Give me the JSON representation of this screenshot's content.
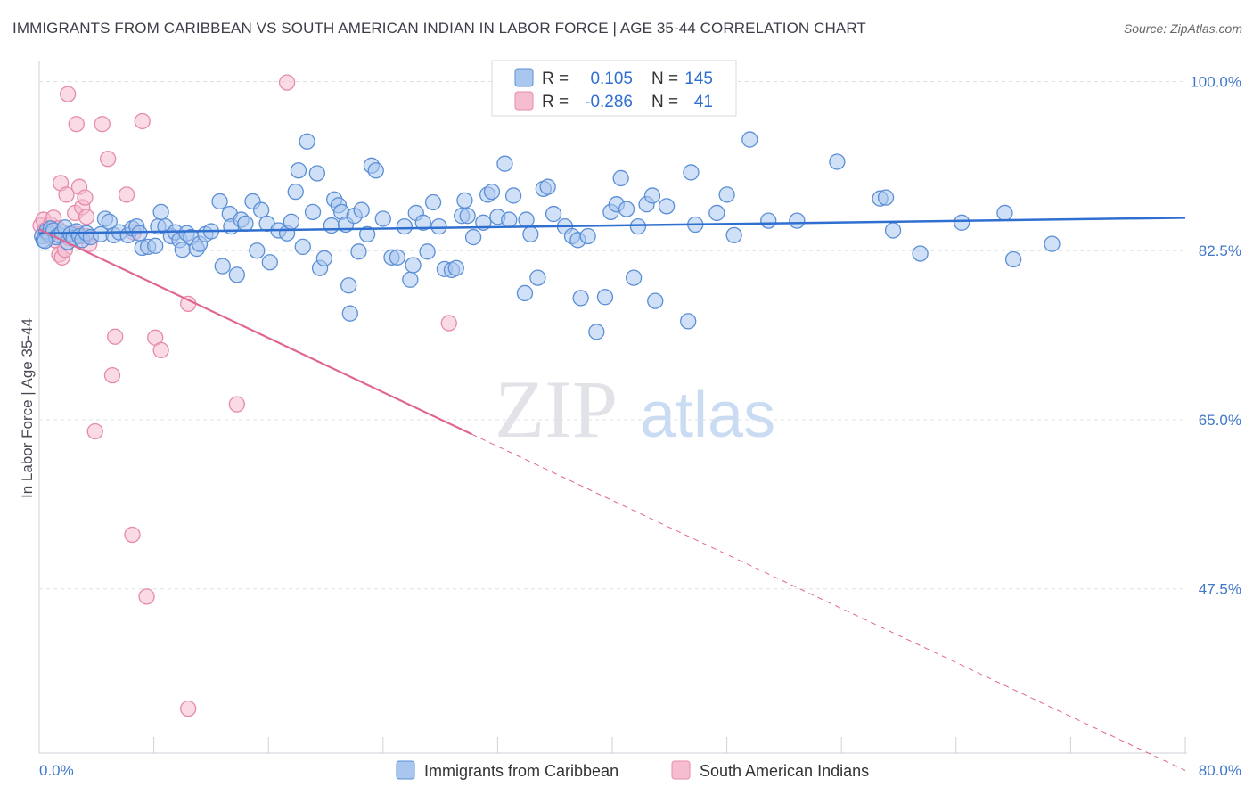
{
  "title": "IMMIGRANTS FROM CARIBBEAN VS SOUTH AMERICAN INDIAN IN LABOR FORCE | AGE 35-44 CORRELATION CHART",
  "source": "Source: ZipAtlas.com",
  "watermark": {
    "zip": "ZIP",
    "atlas": "atlas"
  },
  "colors": {
    "blue_fill": "#a9c6ee",
    "blue_stroke": "#5b8fd6",
    "blue_line": "#2f6fcf",
    "pink_fill": "#f6bcd0",
    "pink_stroke": "#e58aab",
    "pink_line": "#e06690",
    "grid": "#dde0e6",
    "tick_label": "#3f78c9"
  },
  "legend": {
    "rows": [
      {
        "r_label": "R =",
        "r_value": "0.105",
        "n_label": "N =",
        "n_value": "145"
      },
      {
        "r_label": "R =",
        "r_value": "-0.286",
        "n_label": "N =",
        "n_value": "41"
      }
    ]
  },
  "chart_data": {
    "type": "scatter",
    "xlabel": "",
    "ylabel": "In Labor Force | Age 35-44",
    "xlim": [
      0,
      80
    ],
    "ylim": [
      30.5,
      101.8
    ],
    "x_tick_labels": [
      "0.0%",
      "80.0%"
    ],
    "y_ticks": [
      100.0,
      82.5,
      65.0,
      47.5
    ],
    "y_tick_labels": [
      "100.0%",
      "82.5%",
      "65.0%",
      "47.5%"
    ],
    "grid": true,
    "legend_position": "bottom",
    "series": [
      {
        "name": "Immigrants from Caribbean",
        "trend": {
          "x": [
            0,
            80
          ],
          "y": [
            84.3,
            85.9
          ],
          "dashed_from": null
        },
        "points": [
          [
            0.2,
            84.0
          ],
          [
            0.3,
            83.6
          ],
          [
            0.5,
            84.5
          ],
          [
            0.7,
            84.2
          ],
          [
            0.8,
            84.8
          ],
          [
            1.0,
            84.6
          ],
          [
            1.2,
            83.9
          ],
          [
            1.4,
            84.1
          ],
          [
            1.6,
            84.4
          ],
          [
            1.8,
            84.9
          ],
          [
            2.0,
            83.4
          ],
          [
            2.2,
            84.2
          ],
          [
            2.4,
            83.8
          ],
          [
            2.6,
            84.5
          ],
          [
            2.8,
            84.0
          ],
          [
            3.0,
            83.6
          ],
          [
            3.3,
            84.3
          ],
          [
            3.6,
            83.9
          ],
          [
            4.3,
            84.2
          ],
          [
            4.6,
            85.8
          ],
          [
            4.9,
            85.5
          ],
          [
            5.2,
            84.1
          ],
          [
            5.6,
            84.4
          ],
          [
            6.2,
            84.1
          ],
          [
            6.5,
            84.8
          ],
          [
            6.8,
            85.0
          ],
          [
            7.0,
            84.3
          ],
          [
            7.2,
            82.8
          ],
          [
            7.6,
            82.9
          ],
          [
            8.1,
            83.0
          ],
          [
            8.3,
            85.0
          ],
          [
            8.5,
            86.5
          ],
          [
            8.8,
            85.0
          ],
          [
            9.2,
            84.0
          ],
          [
            9.5,
            84.4
          ],
          [
            9.8,
            83.6
          ],
          [
            10.0,
            82.6
          ],
          [
            10.3,
            84.3
          ],
          [
            10.6,
            83.9
          ],
          [
            11.0,
            82.7
          ],
          [
            11.2,
            83.2
          ],
          [
            11.6,
            84.2
          ],
          [
            12.0,
            84.5
          ],
          [
            12.6,
            87.6
          ],
          [
            12.8,
            80.9
          ],
          [
            13.3,
            86.3
          ],
          [
            13.4,
            85.0
          ],
          [
            13.8,
            80.0
          ],
          [
            14.1,
            85.7
          ],
          [
            14.4,
            85.3
          ],
          [
            14.9,
            87.6
          ],
          [
            15.2,
            82.5
          ],
          [
            15.5,
            86.7
          ],
          [
            15.9,
            85.3
          ],
          [
            16.1,
            81.3
          ],
          [
            16.7,
            84.6
          ],
          [
            17.3,
            84.3
          ],
          [
            17.6,
            85.5
          ],
          [
            17.9,
            88.6
          ],
          [
            18.1,
            90.8
          ],
          [
            18.4,
            82.9
          ],
          [
            18.7,
            93.8
          ],
          [
            19.1,
            86.5
          ],
          [
            19.4,
            90.5
          ],
          [
            19.6,
            80.7
          ],
          [
            19.9,
            81.7
          ],
          [
            20.4,
            85.1
          ],
          [
            20.6,
            87.8
          ],
          [
            20.9,
            87.2
          ],
          [
            21.1,
            86.5
          ],
          [
            21.4,
            85.2
          ],
          [
            21.6,
            78.9
          ],
          [
            21.7,
            76.0
          ],
          [
            22.0,
            86.1
          ],
          [
            22.3,
            82.4
          ],
          [
            22.5,
            86.7
          ],
          [
            22.9,
            84.2
          ],
          [
            23.2,
            91.3
          ],
          [
            23.5,
            90.8
          ],
          [
            24.0,
            85.8
          ],
          [
            24.6,
            81.8
          ],
          [
            25.0,
            81.8
          ],
          [
            25.5,
            85.0
          ],
          [
            25.9,
            79.5
          ],
          [
            26.1,
            81.0
          ],
          [
            26.3,
            86.4
          ],
          [
            26.8,
            85.4
          ],
          [
            27.1,
            82.4
          ],
          [
            27.5,
            87.5
          ],
          [
            27.9,
            85.0
          ],
          [
            28.3,
            80.6
          ],
          [
            28.8,
            80.5
          ],
          [
            29.1,
            80.7
          ],
          [
            29.5,
            86.1
          ],
          [
            29.7,
            87.7
          ],
          [
            29.9,
            86.1
          ],
          [
            30.3,
            83.9
          ],
          [
            31.0,
            85.4
          ],
          [
            31.3,
            88.3
          ],
          [
            31.6,
            88.6
          ],
          [
            32.0,
            86.0
          ],
          [
            32.5,
            91.5
          ],
          [
            32.8,
            85.7
          ],
          [
            33.1,
            88.2
          ],
          [
            33.9,
            78.1
          ],
          [
            34.0,
            85.7
          ],
          [
            34.3,
            84.2
          ],
          [
            34.8,
            79.7
          ],
          [
            35.2,
            88.9
          ],
          [
            35.5,
            89.1
          ],
          [
            35.9,
            86.3
          ],
          [
            36.7,
            85.0
          ],
          [
            37.2,
            84.0
          ],
          [
            37.6,
            83.6
          ],
          [
            37.8,
            77.6
          ],
          [
            38.3,
            84.0
          ],
          [
            38.9,
            74.1
          ],
          [
            39.5,
            77.7
          ],
          [
            39.9,
            86.5
          ],
          [
            40.3,
            87.3
          ],
          [
            40.6,
            90.0
          ],
          [
            41.0,
            86.8
          ],
          [
            41.5,
            79.7
          ],
          [
            41.8,
            85.0
          ],
          [
            42.4,
            87.3
          ],
          [
            42.8,
            88.2
          ],
          [
            43.0,
            77.3
          ],
          [
            43.8,
            87.1
          ],
          [
            45.3,
            75.2
          ],
          [
            45.5,
            90.6
          ],
          [
            45.8,
            85.2
          ],
          [
            47.3,
            86.4
          ],
          [
            48.0,
            88.3
          ],
          [
            48.5,
            84.1
          ],
          [
            49.6,
            94.0
          ],
          [
            50.9,
            85.6
          ],
          [
            52.9,
            85.6
          ],
          [
            55.7,
            91.7
          ],
          [
            58.7,
            87.9
          ],
          [
            59.1,
            88.0
          ],
          [
            59.6,
            84.6
          ],
          [
            61.5,
            82.2
          ],
          [
            64.4,
            85.4
          ],
          [
            67.4,
            86.4
          ],
          [
            68.0,
            81.6
          ],
          [
            70.7,
            83.2
          ],
          [
            0.4,
            83.5
          ]
        ]
      },
      {
        "name": "South American Indians",
        "trend": {
          "x": [
            0,
            30.2
          ],
          "y": [
            84.7,
            63.5
          ],
          "dashed_to": [
            80,
            28.7
          ]
        },
        "points": [
          [
            0.1,
            85.1
          ],
          [
            0.3,
            85.7
          ],
          [
            0.4,
            84.6
          ],
          [
            0.6,
            84.0
          ],
          [
            0.8,
            85.2
          ],
          [
            1.0,
            85.9
          ],
          [
            1.1,
            83.6
          ],
          [
            1.3,
            84.8
          ],
          [
            1.4,
            82.1
          ],
          [
            1.5,
            89.5
          ],
          [
            1.6,
            81.8
          ],
          [
            1.8,
            82.6
          ],
          [
            1.9,
            88.3
          ],
          [
            2.1,
            83.8
          ],
          [
            2.3,
            84.3
          ],
          [
            2.5,
            86.4
          ],
          [
            2.6,
            95.6
          ],
          [
            2.7,
            84.2
          ],
          [
            2.8,
            89.1
          ],
          [
            3.0,
            87.0
          ],
          [
            3.2,
            88.0
          ],
          [
            3.3,
            86.0
          ],
          [
            3.5,
            83.2
          ],
          [
            3.3,
            84.0
          ],
          [
            2.0,
            98.7
          ],
          [
            4.4,
            95.6
          ],
          [
            4.8,
            92.0
          ],
          [
            5.3,
            73.6
          ],
          [
            5.1,
            69.6
          ],
          [
            3.9,
            63.8
          ],
          [
            6.1,
            88.3
          ],
          [
            6.6,
            84.4
          ],
          [
            6.5,
            53.1
          ],
          [
            7.2,
            95.9
          ],
          [
            7.5,
            46.7
          ],
          [
            8.1,
            73.5
          ],
          [
            8.5,
            72.2
          ],
          [
            10.4,
            77.0
          ],
          [
            10.4,
            35.1
          ],
          [
            13.8,
            66.6
          ],
          [
            17.3,
            99.9
          ],
          [
            28.6,
            75.0
          ]
        ]
      }
    ]
  }
}
